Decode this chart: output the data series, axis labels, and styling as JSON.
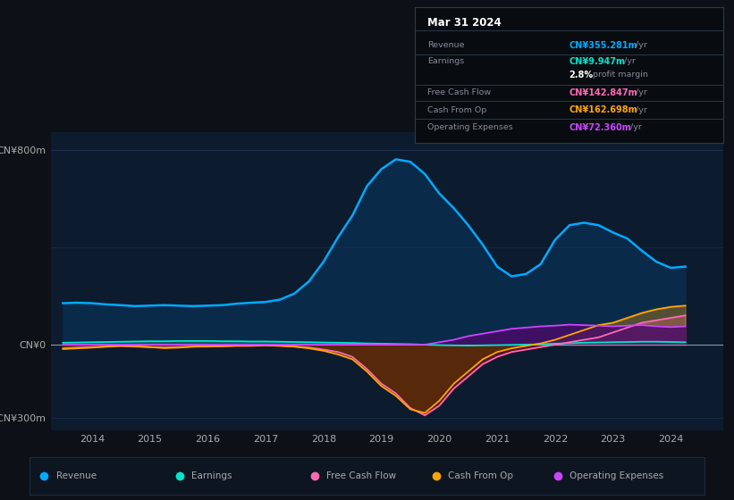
{
  "bg_color": "#0d1117",
  "chart_bg": "#0d1b2e",
  "ylim_min": -350,
  "ylim_max": 870,
  "xlim_min": 2013.3,
  "xlim_max": 2024.9,
  "ytick_vals": [
    -300,
    0,
    800
  ],
  "ytick_labels": [
    "-CN¥300m",
    "CN¥0",
    "CN¥800m"
  ],
  "xtick_vals": [
    2014,
    2015,
    2016,
    2017,
    2018,
    2019,
    2020,
    2021,
    2022,
    2023,
    2024
  ],
  "revenue_color": "#00aaff",
  "revenue_fill": "#0a2a4a",
  "earnings_color": "#00e5cc",
  "fcf_color": "#ff69b4",
  "fcf_fill_neg": "#5a1020",
  "cfop_color": "#ffa500",
  "cfop_fill_neg": "#5a3300",
  "opex_color": "#cc44ff",
  "opex_fill": "#4a0a6a",
  "x_years": [
    2013.5,
    2013.75,
    2014.0,
    2014.25,
    2014.5,
    2014.75,
    2015.0,
    2015.25,
    2015.5,
    2015.75,
    2016.0,
    2016.25,
    2016.5,
    2016.75,
    2017.0,
    2017.25,
    2017.5,
    2017.75,
    2018.0,
    2018.25,
    2018.5,
    2018.75,
    2019.0,
    2019.25,
    2019.5,
    2019.75,
    2020.0,
    2020.25,
    2020.5,
    2020.75,
    2021.0,
    2021.25,
    2021.5,
    2021.75,
    2022.0,
    2022.25,
    2022.5,
    2022.75,
    2023.0,
    2023.25,
    2023.5,
    2023.75,
    2024.0,
    2024.25
  ],
  "revenue": [
    170,
    172,
    170,
    165,
    162,
    158,
    160,
    162,
    160,
    158,
    160,
    162,
    168,
    172,
    175,
    185,
    210,
    260,
    340,
    440,
    530,
    650,
    720,
    760,
    750,
    700,
    620,
    560,
    490,
    410,
    320,
    280,
    290,
    330,
    430,
    490,
    500,
    490,
    460,
    435,
    385,
    340,
    315,
    320
  ],
  "earnings": [
    8,
    9,
    10,
    11,
    12,
    13,
    14,
    14,
    15,
    15,
    15,
    14,
    14,
    13,
    13,
    12,
    11,
    10,
    9,
    8,
    7,
    5,
    4,
    3,
    2,
    0,
    -2,
    -3,
    -4,
    -3,
    -2,
    -1,
    0,
    2,
    4,
    6,
    8,
    9,
    10,
    11,
    12,
    12,
    11,
    10
  ],
  "free_cash_flow": [
    -15,
    -12,
    -10,
    -8,
    -6,
    -8,
    -10,
    -12,
    -10,
    -8,
    -8,
    -7,
    -5,
    -5,
    -3,
    -5,
    -8,
    -12,
    -20,
    -30,
    -50,
    -100,
    -160,
    -200,
    -260,
    -290,
    -250,
    -180,
    -130,
    -80,
    -50,
    -30,
    -20,
    -10,
    0,
    10,
    20,
    30,
    50,
    70,
    90,
    100,
    110,
    120
  ],
  "cash_from_op": [
    -18,
    -15,
    -12,
    -8,
    -4,
    -6,
    -10,
    -14,
    -12,
    -8,
    -6,
    -5,
    -4,
    -3,
    -2,
    -4,
    -8,
    -15,
    -25,
    -40,
    -60,
    -110,
    -170,
    -210,
    -265,
    -280,
    -230,
    -160,
    -110,
    -60,
    -30,
    -15,
    -5,
    5,
    20,
    40,
    60,
    80,
    90,
    110,
    130,
    145,
    155,
    160
  ],
  "operating_expenses": [
    0,
    0,
    0,
    0,
    0,
    0,
    0,
    0,
    0,
    0,
    0,
    0,
    0,
    0,
    0,
    0,
    0,
    0,
    0,
    0,
    0,
    0,
    0,
    0,
    0,
    0,
    10,
    20,
    35,
    45,
    55,
    65,
    70,
    75,
    78,
    82,
    80,
    78,
    75,
    78,
    80,
    75,
    72,
    75
  ],
  "legend_items": [
    {
      "label": "Revenue",
      "color": "#00aaff"
    },
    {
      "label": "Earnings",
      "color": "#00e5cc"
    },
    {
      "label": "Free Cash Flow",
      "color": "#ff69b4"
    },
    {
      "label": "Cash From Op",
      "color": "#ffa500"
    },
    {
      "label": "Operating Expenses",
      "color": "#cc44ff"
    }
  ],
  "info_title": "Mar 31 2024",
  "info_rows": [
    {
      "label": "Revenue",
      "value": "CN¥355.281m",
      "suffix": " /yr",
      "color": "#00aaff",
      "bold_val": false,
      "divider": true
    },
    {
      "label": "Earnings",
      "value": "CN¥9.947m",
      "suffix": " /yr",
      "color": "#00e5cc",
      "bold_val": false,
      "divider": false
    },
    {
      "label": "",
      "value": "2.8%",
      "suffix": " profit margin",
      "color": "#ffffff",
      "bold_val": true,
      "divider": true
    },
    {
      "label": "Free Cash Flow",
      "value": "CN¥142.847m",
      "suffix": " /yr",
      "color": "#ff69b4",
      "bold_val": false,
      "divider": true
    },
    {
      "label": "Cash From Op",
      "value": "CN¥162.698m",
      "suffix": " /yr",
      "color": "#ffa500",
      "bold_val": false,
      "divider": true
    },
    {
      "label": "Operating Expenses",
      "value": "CN¥72.360m",
      "suffix": " /yr",
      "color": "#cc44ff",
      "bold_val": false,
      "divider": false
    }
  ]
}
